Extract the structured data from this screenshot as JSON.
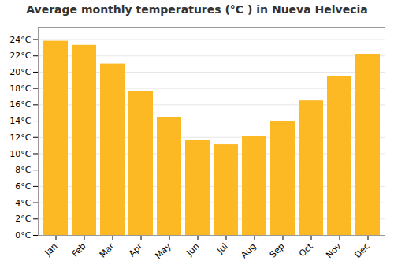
{
  "chart_data": {
    "type": "bar",
    "title": "Average monthly temperatures (°C ) in Nueva Helvecia",
    "categories": [
      "Jan",
      "Feb",
      "Mar",
      "Apr",
      "May",
      "Jun",
      "Jul",
      "Aug",
      "Sep",
      "Oct",
      "Nov",
      "Dec"
    ],
    "values": [
      23.8,
      23.3,
      21.0,
      17.6,
      14.4,
      11.6,
      11.1,
      12.1,
      14.0,
      16.5,
      19.5,
      22.2
    ],
    "color": "#FDB924",
    "ylim": [
      0,
      25.5
    ],
    "yticks": [
      {
        "value": 0,
        "label": "0°C"
      },
      {
        "value": 2,
        "label": "2°C"
      },
      {
        "value": 4,
        "label": "4°C"
      },
      {
        "value": 6,
        "label": "6°C"
      },
      {
        "value": 8,
        "label": "8°C"
      },
      {
        "value": 10,
        "label": "10°C"
      },
      {
        "value": 12,
        "label": "12°C"
      },
      {
        "value": 14,
        "label": "14°C"
      },
      {
        "value": 16,
        "label": "16°C"
      },
      {
        "value": 18,
        "label": "18°C"
      },
      {
        "value": 20,
        "label": "20°C"
      },
      {
        "value": 22,
        "label": "22°C"
      },
      {
        "value": 24,
        "label": "24°C"
      }
    ],
    "grid": true
  }
}
